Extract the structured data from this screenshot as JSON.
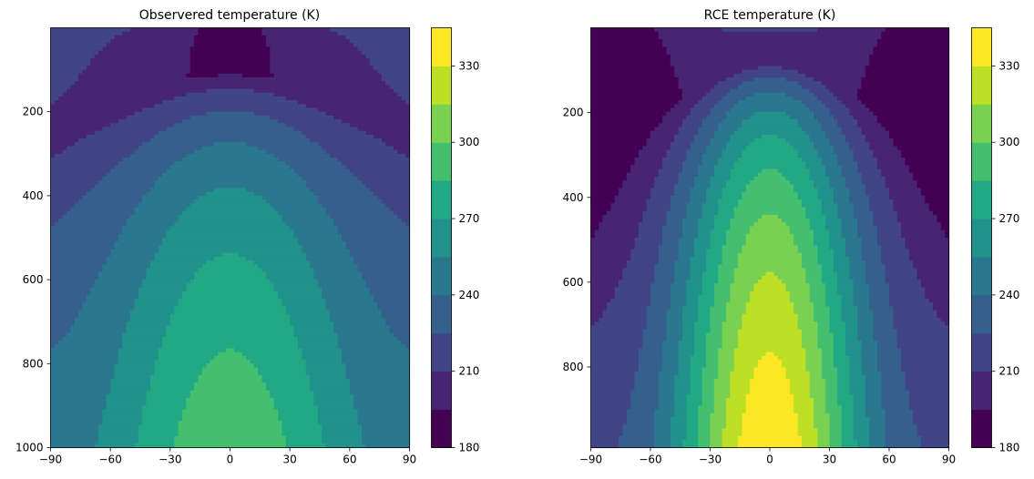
{
  "colors": {
    "levels": [
      "#440154",
      "#482475",
      "#414487",
      "#355f8d",
      "#2a788e",
      "#21918c",
      "#22a884",
      "#44bf70",
      "#7ad151",
      "#bddf26",
      "#fde725"
    ],
    "axis": "#000000",
    "background": "#ffffff"
  },
  "chart_data": [
    {
      "type": "heatmap",
      "subtype": "filled-contour",
      "title": "Observered temperature (K)",
      "xlabel": "",
      "ylabel": "",
      "x_ticks": [
        "−90",
        "−60",
        "−30",
        "0",
        "30",
        "60",
        "90"
      ],
      "y_ticks": [
        "200",
        "400",
        "600",
        "800",
        "1000"
      ],
      "colorbar_ticks": [
        "180",
        "210",
        "240",
        "270",
        "300",
        "330"
      ],
      "xlim": [
        -90,
        90
      ],
      "ylim": [
        1000,
        0
      ],
      "y_axis_inverted": true,
      "colorbar_range": [
        180,
        345
      ],
      "contour_interval": 15,
      "model": "observed"
    },
    {
      "type": "heatmap",
      "subtype": "filled-contour",
      "title": "RCE temperature (K)",
      "xlabel": "",
      "ylabel": "",
      "x_ticks": [
        "−90",
        "−60",
        "−30",
        "0",
        "30",
        "60",
        "90"
      ],
      "y_ticks": [
        "200",
        "400",
        "600",
        "800"
      ],
      "colorbar_ticks": [
        "180",
        "210",
        "240",
        "270",
        "300",
        "330"
      ],
      "xlim": [
        -90,
        90
      ],
      "ylim": [
        990,
        0
      ],
      "y_axis_inverted": true,
      "colorbar_range": [
        180,
        345
      ],
      "contour_interval": 15,
      "model": "rce"
    }
  ]
}
